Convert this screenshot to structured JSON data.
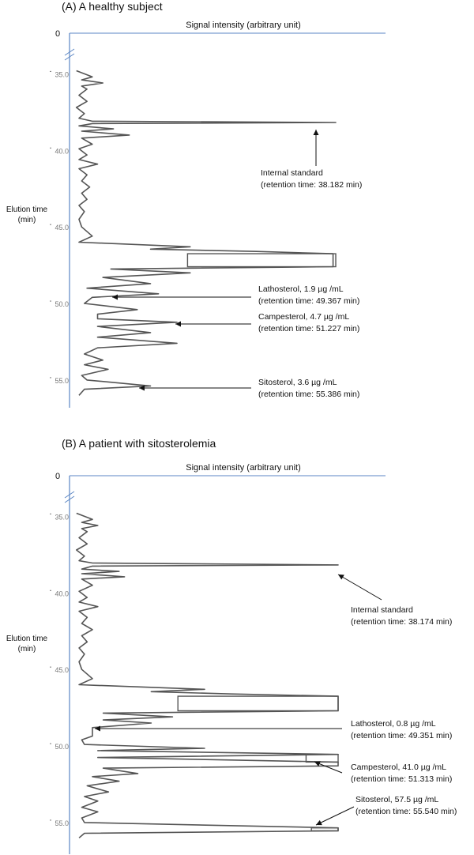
{
  "chart_data": [
    {
      "type": "line",
      "title": "(A) A healthy subject",
      "xlabel": "Signal intensity (arbitrary unit)",
      "ylabel": "Elution time\n(min)",
      "x_origin_label": "0",
      "yticks": [
        "35.0",
        "40.0",
        "45.0",
        "50.0",
        "55.0"
      ],
      "ylim": [
        34.0,
        56.5
      ],
      "xlim": [
        0,
        100
      ],
      "series": [
        {
          "points": [
            [
              34.8,
              2
            ],
            [
              35.2,
              8
            ],
            [
              35.4,
              4
            ],
            [
              35.6,
              12
            ],
            [
              35.8,
              4
            ],
            [
              36.0,
              6
            ],
            [
              36.4,
              3
            ],
            [
              36.8,
              6
            ],
            [
              37.2,
              2
            ],
            [
              37.6,
              5
            ],
            [
              37.9,
              3
            ],
            [
              38.1,
              8
            ],
            [
              38.182,
              100
            ],
            [
              38.25,
              8
            ],
            [
              38.4,
              3
            ],
            [
              38.6,
              16
            ],
            [
              38.75,
              4
            ],
            [
              39.0,
              22
            ],
            [
              39.2,
              4
            ],
            [
              39.6,
              8
            ],
            [
              39.9,
              3
            ],
            [
              40.3,
              6
            ],
            [
              40.6,
              3
            ],
            [
              40.9,
              10
            ],
            [
              41.2,
              3
            ],
            [
              41.6,
              6
            ],
            [
              42.0,
              4
            ],
            [
              42.4,
              7
            ],
            [
              42.8,
              4
            ],
            [
              43.2,
              6
            ],
            [
              43.6,
              3
            ],
            [
              44.0,
              5
            ],
            [
              44.5,
              3
            ],
            [
              45.0,
              4
            ],
            [
              45.6,
              8
            ],
            [
              46.0,
              3
            ],
            [
              46.3,
              45
            ],
            [
              46.45,
              30
            ],
            [
              46.6,
              70
            ],
            [
              46.75,
              99
            ],
            [
              47.6,
              99
            ],
            [
              47.75,
              15
            ],
            [
              48.0,
              45
            ],
            [
              48.3,
              12
            ],
            [
              48.7,
              30
            ],
            [
              49.0,
              6
            ],
            [
              49.367,
              33
            ],
            [
              49.6,
              8
            ],
            [
              50.0,
              5
            ],
            [
              50.4,
              25
            ],
            [
              50.7,
              10
            ],
            [
              51.0,
              10
            ],
            [
              51.227,
              40
            ],
            [
              51.5,
              10
            ],
            [
              51.9,
              30
            ],
            [
              52.2,
              10
            ],
            [
              52.6,
              40
            ],
            [
              52.9,
              10
            ],
            [
              53.3,
              5
            ],
            [
              53.7,
              12
            ],
            [
              54.0,
              5
            ],
            [
              54.3,
              14
            ],
            [
              54.7,
              4
            ],
            [
              55.0,
              6
            ],
            [
              55.386,
              30
            ],
            [
              55.6,
              5
            ],
            [
              56.0,
              3
            ]
          ]
        }
      ],
      "annotations": [
        {
          "line1": "Internal standard",
          "line2": "(retention time: 38.182 min)",
          "peak_time": 38.182
        },
        {
          "line1": "Lathosterol, 1.9 µg /mL",
          "line2": "(retention time: 49.367 min)",
          "peak_time": 49.367
        },
        {
          "line1": "Campesterol, 4.7 µg /mL",
          "line2": "(retention time: 51.227 min)",
          "peak_time": 51.227
        },
        {
          "line1": "Sitosterol, 3.6 µg /mL",
          "line2": "(retention time: 55.386 min)",
          "peak_time": 55.386
        }
      ],
      "grid": false,
      "axis_color": "#5b86c4"
    },
    {
      "type": "line",
      "title": "(B) A patient with sitosterolemia",
      "xlabel": "Signal intensity (arbitrary unit)",
      "ylabel": "Elution time\n(min)",
      "x_origin_label": "0",
      "yticks": [
        "35.0",
        "40.0",
        "45.0",
        "50.0",
        "55.0"
      ],
      "ylim": [
        34.0,
        56.5
      ],
      "xlim": [
        0,
        100
      ],
      "series": [
        {
          "points": [
            [
              34.8,
              2
            ],
            [
              35.2,
              8
            ],
            [
              35.4,
              4
            ],
            [
              35.6,
              10
            ],
            [
              35.8,
              4
            ],
            [
              36.0,
              6
            ],
            [
              36.4,
              3
            ],
            [
              36.8,
              6
            ],
            [
              37.2,
              2
            ],
            [
              37.6,
              5
            ],
            [
              37.9,
              3
            ],
            [
              38.05,
              8
            ],
            [
              38.174,
              100
            ],
            [
              38.25,
              8
            ],
            [
              38.45,
              4
            ],
            [
              38.6,
              18
            ],
            [
              38.75,
              4
            ],
            [
              38.95,
              20
            ],
            [
              39.1,
              4
            ],
            [
              39.5,
              8
            ],
            [
              39.9,
              3
            ],
            [
              40.3,
              6
            ],
            [
              40.6,
              3
            ],
            [
              40.9,
              10
            ],
            [
              41.2,
              3
            ],
            [
              41.6,
              6
            ],
            [
              42.0,
              4
            ],
            [
              42.4,
              8
            ],
            [
              42.8,
              4
            ],
            [
              43.2,
              6
            ],
            [
              43.6,
              3
            ],
            [
              44.0,
              5
            ],
            [
              44.5,
              3
            ],
            [
              45.0,
              4
            ],
            [
              45.6,
              8
            ],
            [
              46.0,
              3
            ],
            [
              46.3,
              50
            ],
            [
              46.45,
              30
            ],
            [
              46.6,
              60
            ],
            [
              46.75,
              100
            ],
            [
              47.7,
              100
            ],
            [
              47.85,
              12
            ],
            [
              48.1,
              38
            ],
            [
              48.3,
              12
            ],
            [
              48.5,
              30
            ],
            [
              48.8,
              8
            ],
            [
              49.351,
              8
            ],
            [
              49.6,
              4
            ],
            [
              49.9,
              5
            ],
            [
              50.15,
              50
            ],
            [
              50.3,
              10
            ],
            [
              50.55,
              100
            ],
            [
              50.75,
              10
            ],
            [
              51.05,
              100
            ],
            [
              51.3,
              100
            ],
            [
              51.45,
              12
            ],
            [
              51.8,
              25
            ],
            [
              52.0,
              8
            ],
            [
              52.3,
              18
            ],
            [
              52.6,
              6
            ],
            [
              53.0,
              14
            ],
            [
              53.3,
              5
            ],
            [
              53.6,
              10
            ],
            [
              54.0,
              4
            ],
            [
              54.3,
              10
            ],
            [
              54.7,
              4
            ],
            [
              55.0,
              5
            ],
            [
              55.35,
              100
            ],
            [
              55.54,
              100
            ],
            [
              55.7,
              5
            ],
            [
              56.0,
              3
            ]
          ]
        }
      ],
      "annotations": [
        {
          "line1": "Internal standard",
          "line2": "(retention time: 38.174 min)",
          "peak_time": 38.174
        },
        {
          "line1": "Lathosterol, 0.8 µg /mL",
          "line2": "(retention time: 49.351 min)",
          "peak_time": 49.351
        },
        {
          "line1": "Campesterol, 41.0 µg /mL",
          "line2": "(retention time: 51.313 min)",
          "peak_time": 51.313
        },
        {
          "line1": "Sitosterol, 57.5 µg /mL",
          "line2": "(retention time: 55.540 min)",
          "peak_time": 55.54
        }
      ],
      "grid": false,
      "axis_color": "#5b86c4"
    }
  ]
}
